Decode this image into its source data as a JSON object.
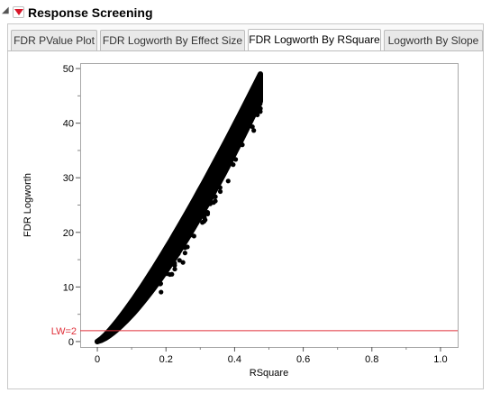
{
  "header": {
    "disclosure_icon": "triangle-down-icon",
    "menu_icon": "red-triangle-menu-icon",
    "title": "Response Screening"
  },
  "tabs": [
    {
      "label": "FDR PValue Plot",
      "active": false
    },
    {
      "label": "FDR Logworth By Effect Size",
      "active": false
    },
    {
      "label": "FDR Logworth By RSquare",
      "active": true
    },
    {
      "label": "Logworth By Slope",
      "active": false
    }
  ],
  "colors": {
    "points": "#000000",
    "reference_line": "#e0303a",
    "menu_triangle": "#d8182a"
  },
  "chart_data": {
    "type": "scatter",
    "xlabel": "RSquare",
    "ylabel": "FDR Logworth",
    "xlim": [
      -0.05,
      1.05
    ],
    "ylim": [
      -1,
      51
    ],
    "xticks": [
      "0",
      "0.2",
      "0.4",
      "0.6",
      "0.8",
      "1.0"
    ],
    "yticks": [
      "0",
      "10",
      "20",
      "30",
      "40",
      "50"
    ],
    "grid": false,
    "reference_line": {
      "y": 2,
      "label": "LW=2"
    },
    "points_shape": "dense band of points from (0,0) curving up to about (0.48, 49)"
  }
}
